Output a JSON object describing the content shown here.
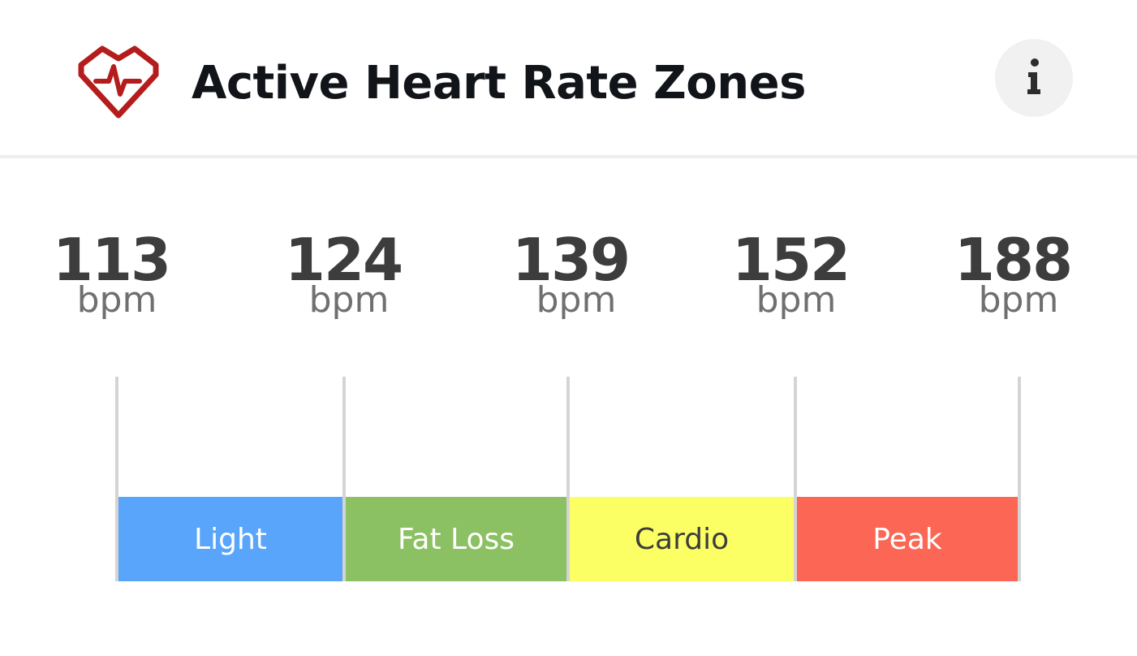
{
  "header": {
    "title": "Active Heart Rate Zones",
    "logo_icon": "heart-pulse-icon",
    "info_icon": "info-icon",
    "accent_color": "#b51c1c"
  },
  "thresholds": [
    {
      "value": "113",
      "unit": "bpm"
    },
    {
      "value": "124",
      "unit": "bpm"
    },
    {
      "value": "139",
      "unit": "bpm"
    },
    {
      "value": "152",
      "unit": "bpm"
    },
    {
      "value": "188",
      "unit": "bpm"
    }
  ],
  "zones": [
    {
      "label": "Light",
      "color": "#58a5fb",
      "text_color": "#ffffff"
    },
    {
      "label": "Fat Loss",
      "color": "#8bc063",
      "text_color": "#ffffff"
    },
    {
      "label": "Cardio",
      "color": "#fcff63",
      "text_color": "#3d3d3d"
    },
    {
      "label": "Peak",
      "color": "#fc6655",
      "text_color": "#ffffff"
    }
  ]
}
